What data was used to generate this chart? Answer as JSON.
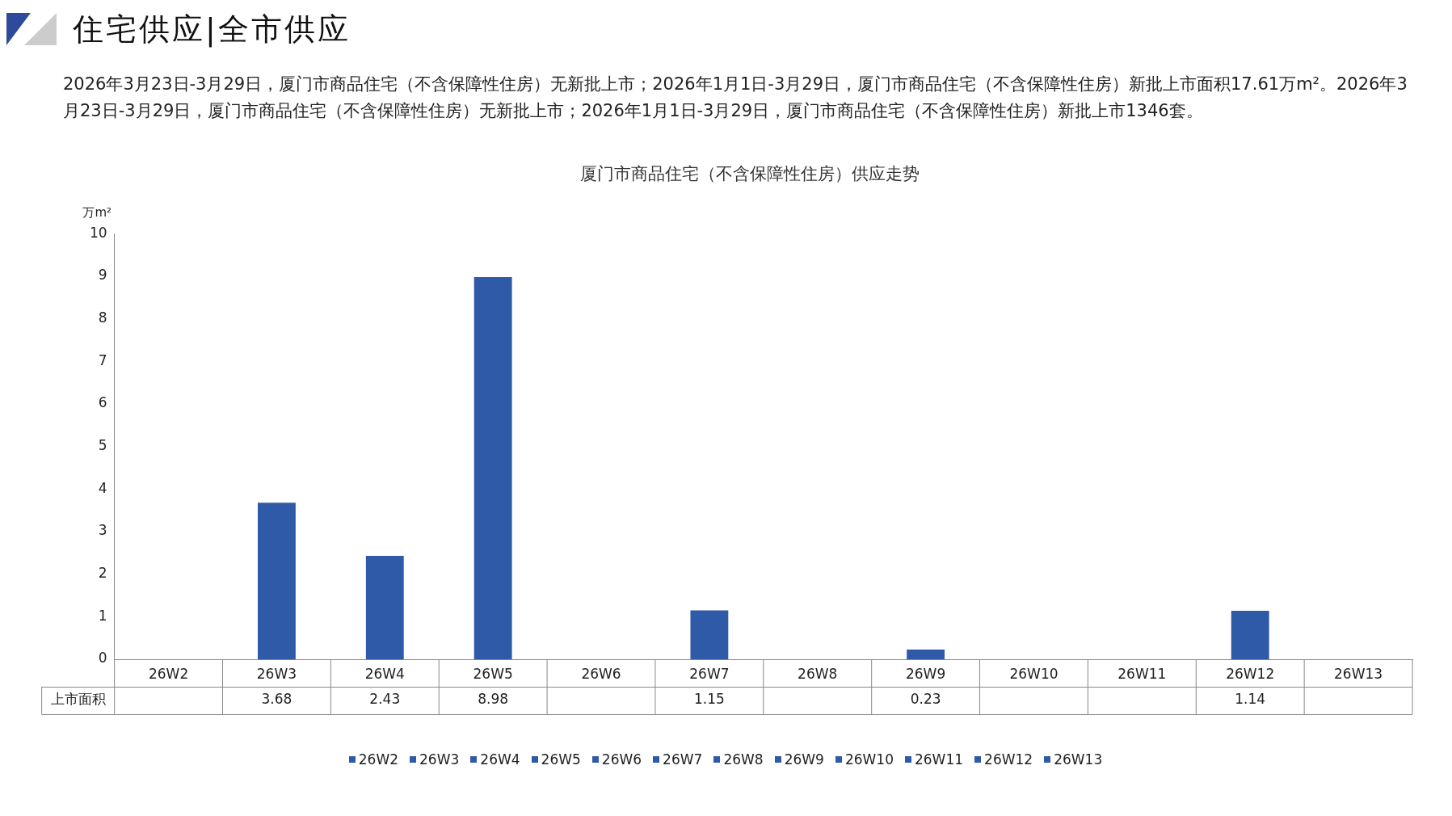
{
  "chart_data": {
    "type": "bar",
    "title": "厦门市商品住宅（不含保障性住房）供应走势",
    "ylabel": "万m²",
    "annotations": [
      "住宅供应|全市供应",
      "2026年3月23日-3月29日，厦门市商品住宅（不含保障性住房）无新批上市；2026年1月1日-3月29日，厦门市商品住宅（不含保障性住房）新批上市面积17.61万m²。2026年3月23日-3月29日，厦门市商品住宅（不含保障性住房）无新批上市；2026年1月1日-3月29日，厦门市商品住宅（不含保障性住房）新批上市1346套。"
    ],
    "categories": [
      "26W2",
      "26W3",
      "26W4",
      "26W5",
      "26W6",
      "26W7",
      "26W8",
      "26W9",
      "26W10",
      "26W11",
      "26W12",
      "26W13"
    ],
    "series": [
      {
        "name": "上市面积",
        "values": [
          null,
          3.68,
          2.43,
          8.98,
          null,
          1.15,
          null,
          0.23,
          null,
          null,
          1.14,
          null
        ],
        "colors": [
          "#2e5aa8",
          "#2e5aa8",
          "#2e5aa8",
          "#2e5aa8",
          "#2e5aa8",
          "#2e5aa8",
          "#2e5aa8",
          "#2e5aa8",
          "#2e5aa8",
          "#2e5aa8",
          "#2e5aa8",
          "#2e5aa8"
        ]
      }
    ],
    "ylim": [
      0,
      10
    ],
    "yticks": [
      0,
      1,
      2,
      3,
      4,
      5,
      6,
      7,
      8,
      9,
      10
    ],
    "grid": false,
    "legend": "bottom",
    "data_labels": true
  }
}
